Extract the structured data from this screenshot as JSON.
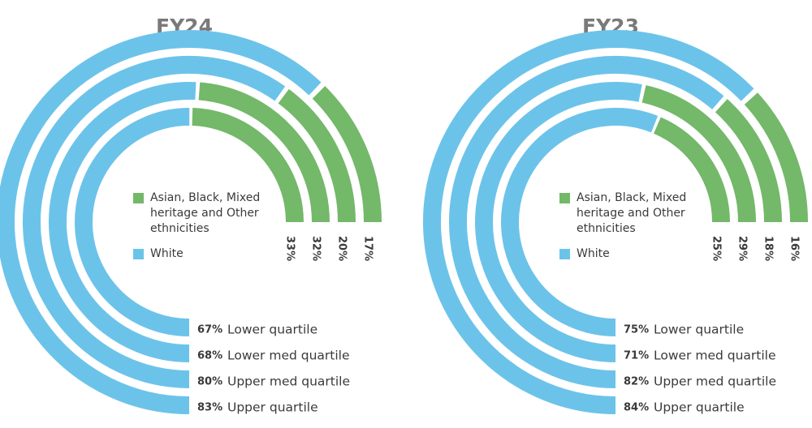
{
  "chart_data": [
    {
      "type": "radial_bar",
      "title": "FY24",
      "categories": [
        "Lower quartile",
        "Lower med quartile",
        "Upper med quartile",
        "Upper quartile"
      ],
      "series": [
        {
          "name": "Asian, Black, Mixed heritage and Other ethnicities",
          "color": "#74b86a",
          "values": [
            33,
            32,
            20,
            17
          ],
          "value_labels": [
            "33%",
            "32%",
            "20%",
            "17%"
          ]
        },
        {
          "name": "White",
          "color": "#6cc3ea",
          "values": [
            67,
            68,
            80,
            83
          ],
          "value_labels": [
            "67%",
            "68%",
            "80%",
            "83%"
          ]
        }
      ]
    },
    {
      "type": "radial_bar",
      "title": "FY23",
      "categories": [
        "Lower quartile",
        "Lower med quartile",
        "Upper med quartile",
        "Upper quartile"
      ],
      "series": [
        {
          "name": "Asian, Black, Mixed heritage and Other ethnicities",
          "color": "#74b86a",
          "values": [
            25,
            29,
            18,
            16
          ],
          "value_labels": [
            "25%",
            "29%",
            "18%",
            "16%"
          ]
        },
        {
          "name": "White",
          "color": "#6cc3ea",
          "values": [
            75,
            71,
            82,
            84
          ],
          "value_labels": [
            "75%",
            "71%",
            "82%",
            "84%"
          ]
        }
      ]
    }
  ]
}
